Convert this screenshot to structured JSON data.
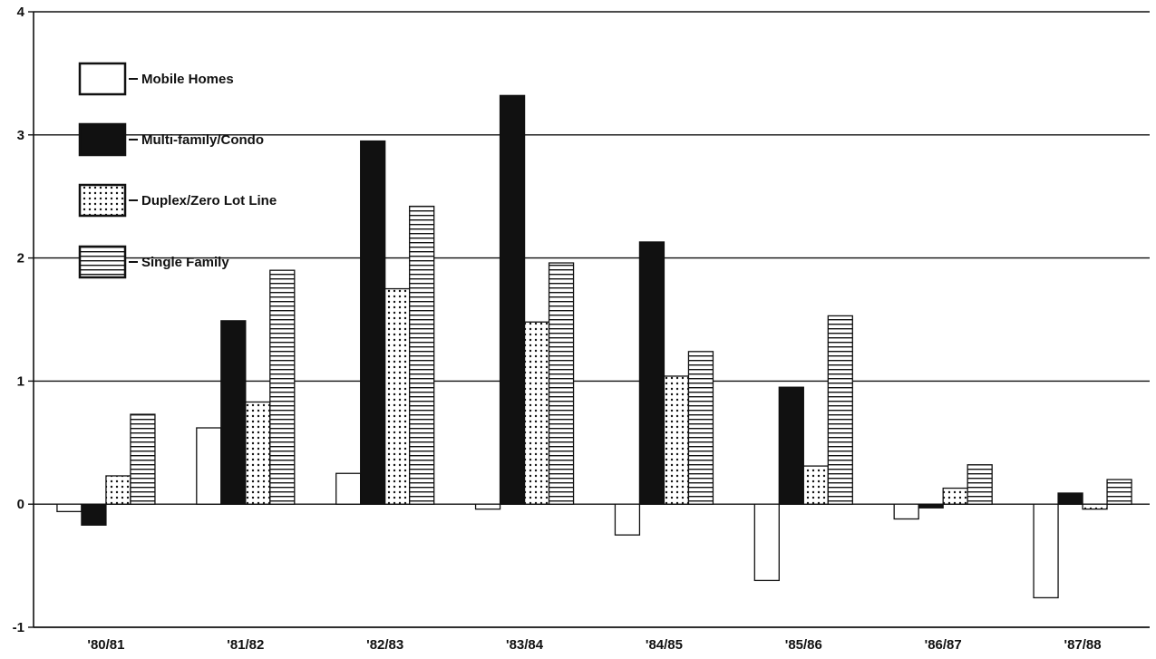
{
  "chart_data": {
    "type": "bar",
    "title": "",
    "xlabel": "",
    "ylabel": "",
    "categories": [
      "'80/81",
      "'81/82",
      "'82/83",
      "'83/84",
      "'84/85",
      "'85/86",
      "'86/87",
      "'87/88"
    ],
    "ylim": [
      -1,
      4
    ],
    "yticks": [
      "-1",
      "0",
      "1",
      "2",
      "3",
      "4"
    ],
    "grid": true,
    "legend_position": "top-left",
    "series": [
      {
        "name": "Mobile Homes",
        "pattern": "empty",
        "values": [
          -0.06,
          0.62,
          0.25,
          -0.04,
          -0.25,
          -0.62,
          -0.12,
          -0.76
        ]
      },
      {
        "name": "Multi-family/Condo",
        "pattern": "solid",
        "values": [
          -0.17,
          1.49,
          2.95,
          3.32,
          2.13,
          0.95,
          -0.03,
          0.09
        ]
      },
      {
        "name": "Duplex/Zero Lot Line",
        "pattern": "dotted",
        "values": [
          0.23,
          0.83,
          1.75,
          1.48,
          1.04,
          0.31,
          0.13,
          -0.04
        ]
      },
      {
        "name": "Single Family",
        "pattern": "horizontal-lines",
        "values": [
          0.73,
          1.9,
          2.42,
          1.96,
          1.24,
          1.53,
          0.32,
          0.2
        ]
      }
    ],
    "colors": {
      "ink": "#111111",
      "paper": "#ffffff"
    }
  }
}
